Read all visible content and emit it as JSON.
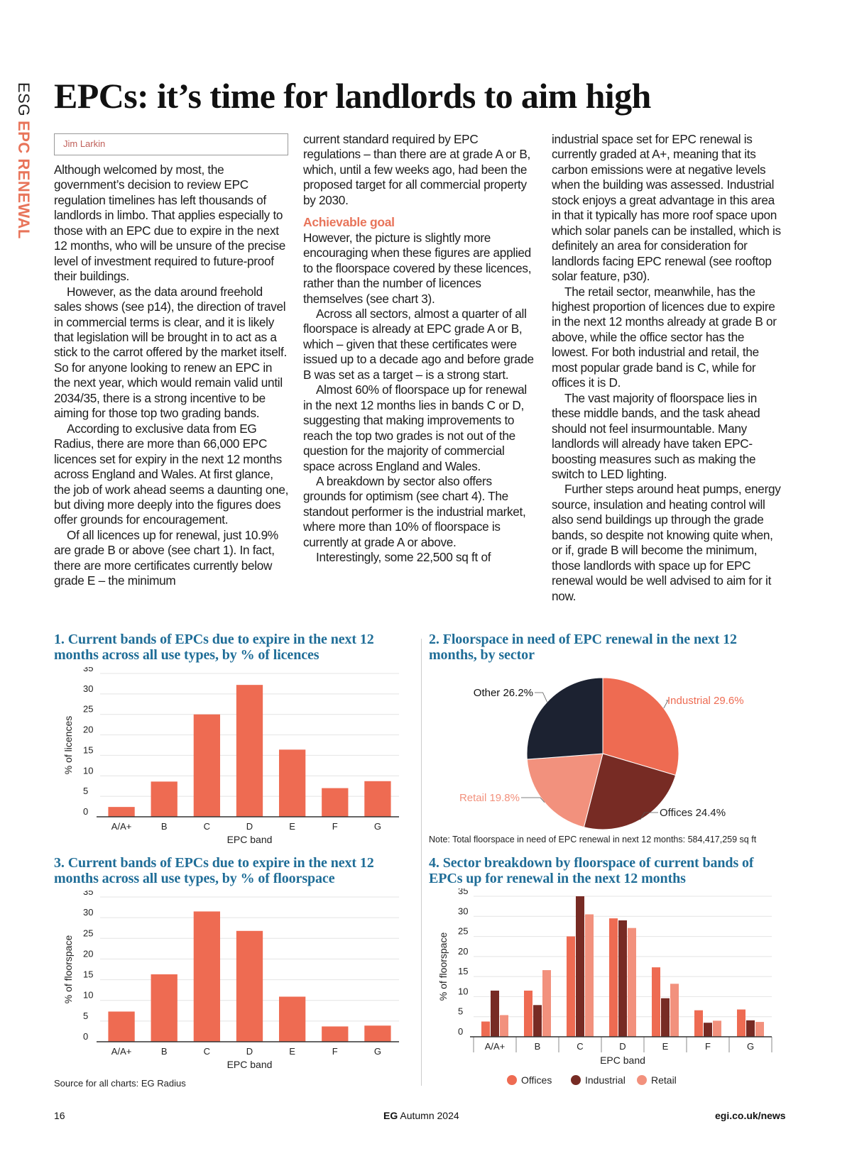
{
  "section_tag": {
    "prefix": "ESG",
    "label": "EPC RENEWAL"
  },
  "headline": "EPCs: it’s time for landlords to aim high",
  "byline": "Jim Larkin",
  "columns": [
    [
      {
        "type": "p",
        "first": true,
        "text": "Although welcomed by most, the government’s decision to review EPC regulation timelines has left thousands of landlords in limbo. That applies especially to those with an EPC due to expire in the next 12 months, who will be unsure of the precise level of investment required to future-proof their buildings."
      },
      {
        "type": "p",
        "text": "However, as the data around freehold sales shows (see p14), the direction of travel in commercial terms is clear, and it is likely that legislation will be brought in to act as a stick to the carrot offered by the market itself. So for anyone looking to renew an EPC in the next year, which would remain valid until 2034/35, there is a strong incentive to be aiming for those top two grading bands."
      },
      {
        "type": "p",
        "text": "According to exclusive data from EG Radius, there are more than 66,000 EPC licences set for expiry in the next 12 months across England and Wales. At first glance, the job of work ahead seems a daunting one, but diving more deeply into the figures does offer grounds for encouragement."
      },
      {
        "type": "p",
        "text": "Of all licences up for renewal, just 10.9% are grade B or above (see chart 1). In fact, there are more certificates currently below grade E – the minimum"
      }
    ],
    [
      {
        "type": "p",
        "first": true,
        "text": "current standard required by EPC regulations – than there are at grade A or B, which, until a few weeks ago, had been the proposed target for all commercial property by 2030."
      },
      {
        "type": "h",
        "text": "Achievable goal"
      },
      {
        "type": "p",
        "first": true,
        "text": "However, the picture is slightly more encouraging when these figures are applied to the floorspace covered by these licences, rather than the number of licences themselves (see chart 3)."
      },
      {
        "type": "p",
        "text": "Across all sectors, almost a quarter of all floorspace is already at EPC grade A or B, which – given that these certificates were issued up to a decade ago and before grade B was set as a target – is a strong start."
      },
      {
        "type": "p",
        "text": "Almost 60% of floorspace up for renewal in the next 12 months lies in bands C or D, suggesting that making improvements to reach the top two grades is not out of the question for the majority of commercial space across England and Wales."
      },
      {
        "type": "p",
        "text": "A breakdown by sector also offers grounds for optimism (see chart 4). The standout performer is the industrial market, where more than 10% of floorspace is currently at grade A or above."
      },
      {
        "type": "p",
        "text": "Interestingly, some 22,500 sq ft of"
      }
    ],
    [
      {
        "type": "p",
        "first": true,
        "text": "industrial space set for EPC renewal is currently graded at A+, meaning that its carbon emissions were at negative levels when the building was assessed. Industrial stock enjoys a great advantage in this area in that it typically has more roof space upon which solar panels can be installed, which is definitely an area for consideration for landlords facing EPC renewal (see rooftop solar feature, p30)."
      },
      {
        "type": "p",
        "text": "The retail sector, meanwhile, has the highest proportion of licences due to expire in the next 12 months already at grade B or above, while the office sector has the lowest. For both industrial and retail, the most popular grade band is C, while for offices it is D."
      },
      {
        "type": "p",
        "text": "The vast majority of floorspace lies in these middle bands, and the task ahead should not feel insurmountable. Many landlords will already have taken EPC-boosting measures such as making the switch to LED lighting."
      },
      {
        "type": "p",
        "text": "Further steps around heat pumps, energy source, insulation and heating control will also send buildings up through the grade bands, so despite not knowing quite when, or if, grade B will become the minimum, those landlords with space up for EPC renewal would be well advised to aim for it now."
      }
    ]
  ],
  "colors": {
    "offices": "#ee6b52",
    "industrial": "#772b24",
    "retail": "#f2917d",
    "other": "#1c2231",
    "title": "#1f6d97",
    "accent": "#e8745a"
  },
  "chart_data": [
    {
      "type": "bar",
      "title": "1. Current bands of EPCs due to expire in the next 12 months across all use types, by % of licences",
      "categories": [
        "A/A+",
        "B",
        "C",
        "D",
        "E",
        "F",
        "G"
      ],
      "values": [
        2.4,
        8.6,
        25.0,
        32.2,
        16.4,
        7.0,
        8.7
      ],
      "xlabel": "EPC band",
      "ylabel": "% of licences",
      "ylim": [
        0,
        35
      ],
      "yticks": [
        0,
        5,
        10,
        15,
        20,
        25,
        30,
        35
      ],
      "grid": true
    },
    {
      "type": "pie",
      "title": "2. Floorspace in need of EPC renewal in the next 12 months, by sector",
      "slices": [
        {
          "label": "Industrial",
          "value": 29.6,
          "display": "Industrial 29.6%",
          "color": "#ee6b52"
        },
        {
          "label": "Offices",
          "value": 24.4,
          "display": "Offices 24.4%",
          "color": "#772b24"
        },
        {
          "label": "Retail",
          "value": 19.8,
          "display": "Retail 19.8%",
          "color": "#f2917d"
        },
        {
          "label": "Other",
          "value": 26.2,
          "display": "Other 26.2%",
          "color": "#1c2231"
        }
      ],
      "note": "Note: Total floorspace in need of EPC renewal in next 12 months: 584,417,259 sq ft"
    },
    {
      "type": "bar",
      "title": "3. Current bands of EPCs due to expire in the next 12 months across all use types, by % of floorspace",
      "categories": [
        "A/A+",
        "B",
        "C",
        "D",
        "E",
        "F",
        "G"
      ],
      "values": [
        7.3,
        16.3,
        31.5,
        26.8,
        10.9,
        3.7,
        3.9
      ],
      "xlabel": "EPC band",
      "ylabel": "% of floorspace",
      "ylim": [
        0,
        35
      ],
      "yticks": [
        0,
        5,
        10,
        15,
        20,
        25,
        30,
        35
      ],
      "grid": true
    },
    {
      "type": "bar",
      "title": "4. Sector breakdown by floorspace of current bands of EPCs up for renewal in the next 12 months",
      "categories": [
        "A/A+",
        "B",
        "C",
        "D",
        "E",
        "F",
        "G"
      ],
      "series": [
        {
          "name": "Offices",
          "color": "#ee6b52",
          "values": [
            3.8,
            11.5,
            25.0,
            29.5,
            17.3,
            6.6,
            6.8
          ]
        },
        {
          "name": "Industrial",
          "color": "#772b24",
          "values": [
            11.5,
            7.9,
            35.0,
            29.0,
            9.6,
            3.5,
            4.1
          ]
        },
        {
          "name": "Retail",
          "color": "#f2917d",
          "values": [
            5.4,
            16.6,
            30.5,
            27.1,
            13.2,
            4.0,
            3.7
          ]
        }
      ],
      "xlabel": "EPC band",
      "ylabel": "% of floorspace",
      "ylim": [
        0,
        35
      ],
      "yticks": [
        0,
        5,
        10,
        15,
        20,
        25,
        30,
        35
      ],
      "grid": true,
      "legend": "bottom"
    }
  ],
  "source": "Source for all charts: EG Radius",
  "footer": {
    "page": "16",
    "issue_bold": "EG",
    "issue": "Autumn 2024",
    "url": "egi.co.uk/news"
  }
}
